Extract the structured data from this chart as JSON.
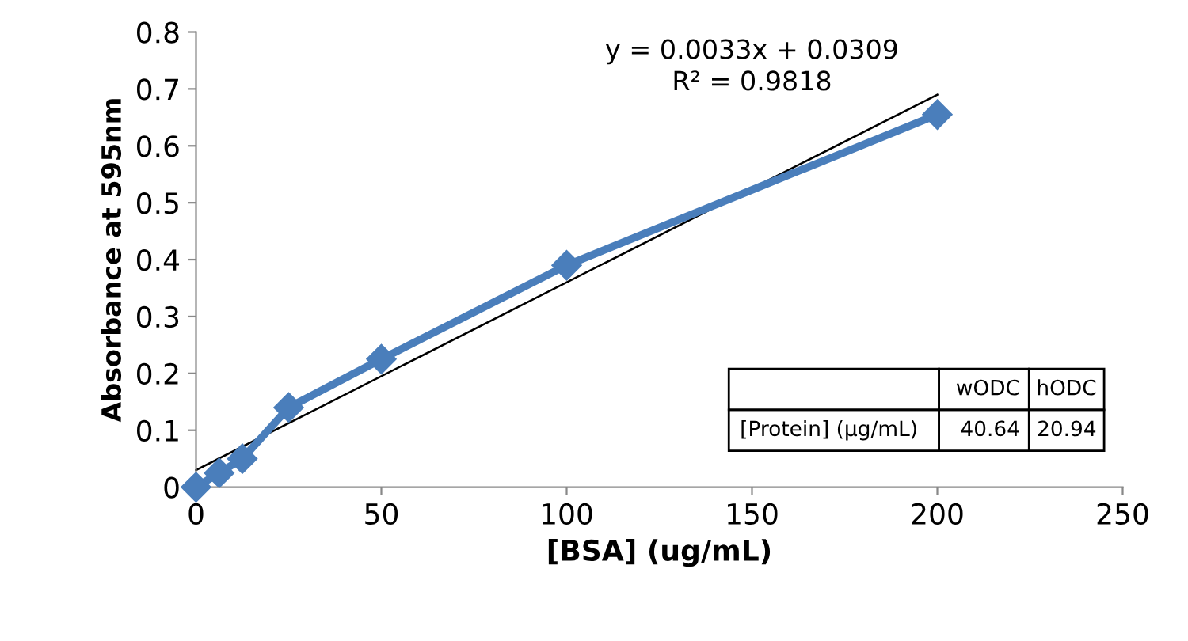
{
  "chart_data": {
    "type": "line",
    "xlabel": "[BSA] (ug/mL)",
    "ylabel": "Absorbance at 595nm",
    "x": [
      0,
      6.25,
      12.5,
      25,
      50,
      100,
      200
    ],
    "series": [
      {
        "color": "#4a7ebb",
        "values": [
          0,
          0.025,
          0.05,
          0.14,
          0.225,
          0.39,
          0.655
        ],
        "marker": "diamond",
        "line_style": "solid"
      },
      {
        "color": "#000000",
        "x": [
          0,
          200
        ],
        "values": [
          0.03,
          0.69
        ],
        "marker": "none",
        "line_style": "solid"
      }
    ],
    "xlim": [
      0,
      250
    ],
    "xticks": [
      0,
      50,
      100,
      150,
      200,
      250
    ],
    "ylim": [
      0,
      0.8
    ],
    "yticks": [
      0,
      0.1,
      0.2,
      0.3,
      0.4,
      0.5,
      0.6,
      0.7,
      0.8
    ],
    "grid": false,
    "legend": false,
    "annotations": [
      "y = 0.0033x + 0.0309\nR² = 0.9818",
      "wODC",
      "hODC",
      "[Protein] (µg/mL)",
      "40.64",
      "20.94"
    ]
  }
}
